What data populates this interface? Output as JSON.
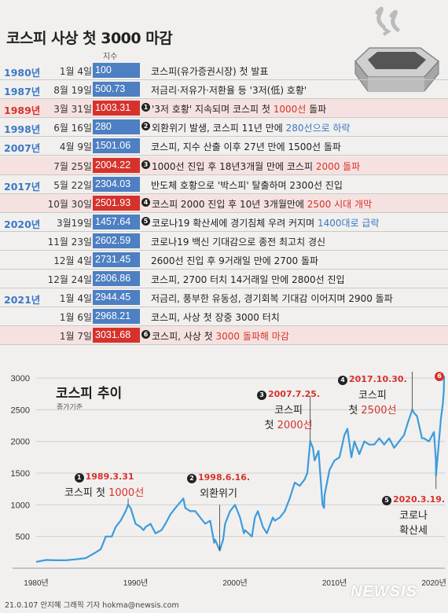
{
  "title": "코스피 사상 첫 3000 마감",
  "col_header": "지수",
  "rows": [
    {
      "year": "1980년",
      "md": "1월 4일",
      "value": "100",
      "num": "",
      "desc": "코스피(유가증권시장) 첫 발표",
      "hl": "",
      "tone": "blue",
      "numdesc": false
    },
    {
      "year": "1987년",
      "md": "8월 19일",
      "value": "500.73",
      "num": "",
      "desc": "저금리·저유가·저환율 등 '3저(低) 호황'",
      "hl": "",
      "tone": "blue",
      "numdesc": false
    },
    {
      "year": "1989년",
      "md": "3월 31일",
      "value": "1003.31",
      "num": "1",
      "desc": "'3저 호황' 지속되며 코스피 첫 ",
      "hl": "1000선",
      "desc2": " 돌파",
      "tone": "red",
      "numdesc": true
    },
    {
      "year": "1998년",
      "md": "6월 16일",
      "value": "280",
      "num": "2",
      "desc": "외환위기 발생, 코스피 11년 만에 ",
      "hl": "280선으로 하락",
      "desc2": "",
      "tone": "blue",
      "numdesc": true
    },
    {
      "year": "2007년",
      "md": "4월 9일",
      "value": "1501.06",
      "num": "",
      "desc": "코스피, 지수 산출 이후 27년 만에 1500선 돌파",
      "hl": "",
      "tone": "blue",
      "numdesc": false
    },
    {
      "year": "",
      "md": "7월 25일",
      "value": "2004.22",
      "num": "3",
      "desc": "1000선 진입 후 18년3개월 만에 코스피 ",
      "hl": "2000 돌파",
      "desc2": "",
      "tone": "red",
      "numdesc": true
    },
    {
      "year": "2017년",
      "md": "5월 22일",
      "value": "2304.03",
      "num": "",
      "desc": "반도체 호황으로 '박스피' 탈출하며 2300선 진입",
      "hl": "",
      "tone": "blue",
      "numdesc": false
    },
    {
      "year": "",
      "md": "10월 30일",
      "value": "2501.93",
      "num": "4",
      "desc": "코스피 2000 진입 후 10년 3개월만에 ",
      "hl": "2500 시대 개막",
      "desc2": "",
      "tone": "red",
      "numdesc": true
    },
    {
      "year": "2020년",
      "md": "3월19일",
      "value": "1457.64",
      "num": "5",
      "desc": "코로나19 확산세에 경기침체 우려 커지며 ",
      "hl": "1400대로 급락",
      "desc2": "",
      "tone": "blue",
      "numdesc": true
    },
    {
      "year": "",
      "md": "11월 23일",
      "value": "2602.59",
      "num": "",
      "desc": "코로나19 백신 기대감으로 종전 최고치 경신",
      "hl": "",
      "tone": "blue",
      "numdesc": false
    },
    {
      "year": "",
      "md": "12월 4일",
      "value": "2731.45",
      "num": "",
      "desc": "2600선 진입 후 9거래일 만에 2700 돌파",
      "hl": "",
      "tone": "blue",
      "numdesc": false
    },
    {
      "year": "",
      "md": "12월 24일",
      "value": "2806.86",
      "num": "",
      "desc": "코스피, 2700 터치 14거래일 만에 2800선 진입",
      "hl": "",
      "tone": "blue",
      "numdesc": false
    },
    {
      "year": "2021년",
      "md": "1월 4일",
      "value": "2944.45",
      "num": "",
      "desc": "저금리, 풍부한 유동성, 경기회복 기대감 이어지며 2900 돌파",
      "hl": "",
      "tone": "blue",
      "numdesc": false
    },
    {
      "year": "",
      "md": "1월 6일",
      "value": "2968.21",
      "num": "",
      "desc": "코스피, 사상 첫 장중 3000 터치",
      "hl": "",
      "tone": "blue",
      "numdesc": false
    },
    {
      "year": "",
      "md": "1월 7일",
      "value": "3031.68",
      "num": "6",
      "desc": "코스피, 사상 첫 ",
      "hl": "3000 돌파해 마감",
      "desc2": "",
      "tone": "red",
      "numdesc": true
    }
  ],
  "chart_data": {
    "type": "line",
    "title": "코스피 추이",
    "subtitle": "종가기준",
    "ylim": [
      0,
      3100
    ],
    "yticks": [
      500,
      1000,
      1500,
      2000,
      2500,
      3000
    ],
    "xticks": [
      "1980년",
      "1990년",
      "2000년",
      "2010년",
      "2020년"
    ],
    "xlim": [
      1980,
      2021.1
    ],
    "series": [
      {
        "x": [
          1980,
          1981,
          1982,
          1983,
          1984,
          1985,
          1986,
          1986.5,
          1987,
          1987.6,
          1988,
          1988.5,
          1989,
          1989.25,
          1989.5,
          1990,
          1990.5,
          1990.8,
          1991,
          1991.5,
          1992,
          1992.6,
          1993,
          1993.5,
          1994,
          1994.8,
          1995,
          1995.5,
          1996,
          1996.5,
          1997,
          1997.5,
          1997.9,
          1998,
          1998.46,
          1998.8,
          1999,
          1999.5,
          2000,
          2000.5,
          2000.9,
          2001,
          2001.7,
          2002,
          2002.3,
          2002.8,
          2003,
          2003.2,
          2003.8,
          2004,
          2004.5,
          2005,
          2005.5,
          2006,
          2006.5,
          2007,
          2007.27,
          2007.56,
          2007.83,
          2008,
          2008.4,
          2008.8,
          2008.95,
          2009,
          2009.5,
          2010,
          2010.5,
          2011,
          2011.3,
          2011.7,
          2012,
          2012.5,
          2013,
          2013.5,
          2014,
          2014.5,
          2015,
          2015.5,
          2016,
          2016.5,
          2017,
          2017.39,
          2017.83,
          2018,
          2018.3,
          2018.8,
          2019,
          2019.5,
          2020,
          2020.2,
          2020.21,
          2020.4,
          2020.7,
          2020.9,
          2021,
          2021.02
        ],
        "y": [
          100,
          130,
          125,
          125,
          140,
          160,
          250,
          300,
          500,
          500,
          650,
          750,
          900,
          1003.31,
          950,
          700,
          650,
          600,
          650,
          700,
          550,
          600,
          700,
          850,
          950,
          1100,
          950,
          900,
          900,
          800,
          700,
          750,
          400,
          450,
          280,
          450,
          700,
          900,
          1000,
          800,
          550,
          600,
          500,
          800,
          900,
          650,
          600,
          550,
          800,
          750,
          800,
          900,
          1100,
          1350,
          1300,
          1400,
          1501.06,
          2004.22,
          1900,
          1700,
          1850,
          1000,
          950,
          1150,
          1550,
          1700,
          1750,
          2100,
          2200,
          1750,
          2000,
          1800,
          2000,
          1950,
          1950,
          2050,
          1950,
          2050,
          1900,
          2000,
          2100,
          2304.03,
          2501.93,
          2450,
          2400,
          2050,
          2050,
          2000,
          2150,
          1700,
          1457.64,
          1800,
          2350,
          2602.59,
          2806.86,
          3031.68
        ]
      }
    ],
    "annotations": [
      {
        "num": "1",
        "date": "1989.3.31",
        "line1": "코스피 첫 ",
        "hl": "1000선"
      },
      {
        "num": "2",
        "date": "1998.6.16.",
        "line1": "외환위기",
        "hl": ""
      },
      {
        "num": "3",
        "date": "2007.7.25.",
        "line1": "코스피",
        "line2": "첫 ",
        "hl": "2000선"
      },
      {
        "num": "4",
        "date": "2017.10.30.",
        "line1": "코스피",
        "line2": "첫 ",
        "hl": "2500선"
      },
      {
        "num": "5",
        "date": "2020.3.19.",
        "line1": "코로나",
        "line2": "확산세",
        "hl": ""
      },
      {
        "num": "6",
        "date": "",
        "line1": "",
        "hl": ""
      }
    ]
  },
  "credit": "21.0.107 안지혜 그래픽 기자 hokma@newsis.com",
  "brand": "NEWSIS",
  "colors": {
    "blue": "#4d7fc2",
    "red": "#d6322c",
    "line": "#3d9bdc"
  }
}
